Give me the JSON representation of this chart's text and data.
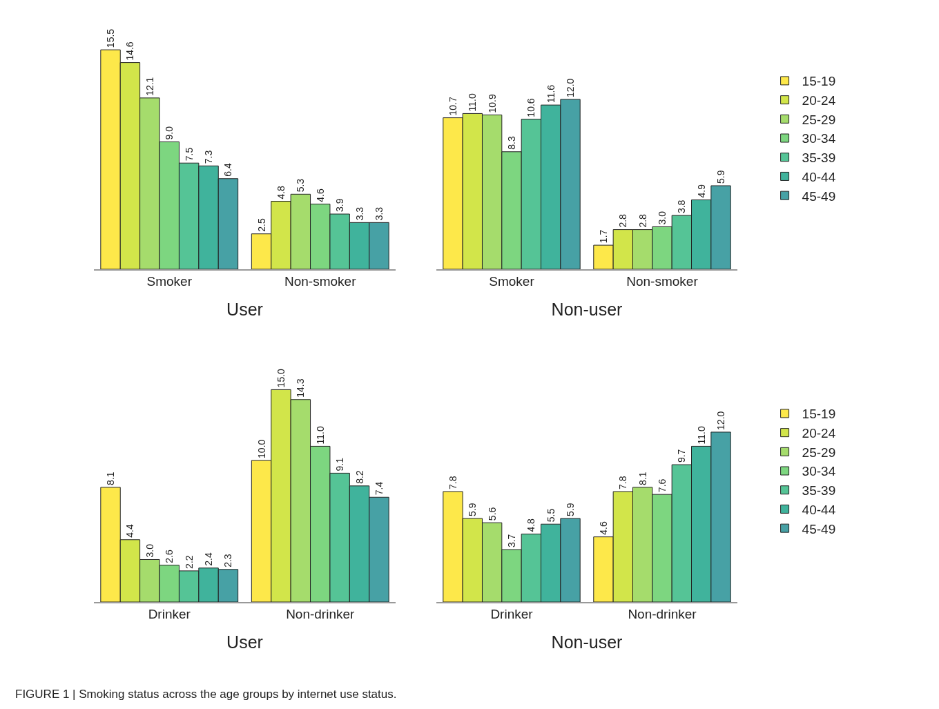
{
  "chart_data": [
    {
      "type": "bar",
      "categories": [
        "Smoker",
        "Non-smoker"
      ],
      "xlabel": "User",
      "tick_labels": "x",
      "legend": false,
      "annotations": [
        "FIGURE 1 | Smoking status across the age groups by internet use status."
      ],
      "series": [
        {
          "color": "#fde84a",
          "values": [
            15.5,
            2.5
          ],
          "value_labels": [
            "15.5",
            "2.5"
          ]
        },
        {
          "color": "#d2e54a",
          "values": [
            14.6,
            4.8
          ],
          "value_labels": [
            "14.6",
            "4.8"
          ]
        },
        {
          "color": "#a5dc6c",
          "values": [
            12.1,
            5.3
          ],
          "value_labels": [
            "12.1",
            "5.3"
          ]
        },
        {
          "color": "#7dd680",
          "values": [
            9.0,
            4.6
          ],
          "value_labels": [
            "9.0",
            "4.6"
          ]
        },
        {
          "color": "#55c496",
          "values": [
            7.5,
            3.9
          ],
          "value_labels": [
            "7.5",
            "3.9"
          ]
        },
        {
          "color": "#40b39c",
          "values": [
            7.3,
            3.3
          ],
          "value_labels": [
            "7.3",
            "3.3"
          ]
        },
        {
          "color": "#47a1a5",
          "values": [
            6.4,
            3.3
          ],
          "value_labels": [
            "6.4",
            "3.3"
          ]
        }
      ]
    },
    {
      "type": "bar",
      "categories": [
        "Smoker",
        "Non-smoker"
      ],
      "xlabel": "Non-user",
      "tick_labels": "x",
      "legend": "right",
      "series": [
        {
          "name": "15-19",
          "color": "#fde84a",
          "values": [
            10.7,
            1.7
          ],
          "value_labels": [
            "10.7",
            "1.7"
          ]
        },
        {
          "name": "20-24",
          "color": "#d2e54a",
          "values": [
            11.0,
            2.8
          ],
          "value_labels": [
            "11.0",
            "2.8"
          ]
        },
        {
          "name": "25-29",
          "color": "#a5dc6c",
          "values": [
            10.9,
            2.8
          ],
          "value_labels": [
            "10.9",
            "2.8"
          ]
        },
        {
          "name": "30-34",
          "color": "#7dd680",
          "values": [
            8.3,
            3.0
          ],
          "value_labels": [
            "8.3",
            "3.0"
          ]
        },
        {
          "name": "35-39",
          "color": "#55c496",
          "values": [
            10.6,
            3.8
          ],
          "value_labels": [
            "10.6",
            "3.8"
          ]
        },
        {
          "name": "40-44",
          "color": "#40b39c",
          "values": [
            11.6,
            4.9
          ],
          "value_labels": [
            "11.6",
            "4.9"
          ]
        },
        {
          "name": "45-49",
          "color": "#47a1a5",
          "values": [
            12.0,
            5.9
          ],
          "value_labels": [
            "12.0",
            "5.9"
          ]
        }
      ]
    },
    {
      "type": "bar",
      "categories": [
        "Drinker",
        "Non-drinker"
      ],
      "xlabel": "User",
      "tick_labels": "x",
      "legend": false,
      "series": [
        {
          "color": "#fde84a",
          "values": [
            8.1,
            10.0
          ],
          "value_labels": [
            "8.1",
            "10.0"
          ]
        },
        {
          "color": "#d2e54a",
          "values": [
            4.4,
            15.0
          ],
          "value_labels": [
            "4.4",
            "15.0"
          ]
        },
        {
          "color": "#a5dc6c",
          "values": [
            3.0,
            14.3
          ],
          "value_labels": [
            "3.0",
            "14.3"
          ]
        },
        {
          "color": "#7dd680",
          "values": [
            2.6,
            11.0
          ],
          "value_labels": [
            "2.6",
            "11.0"
          ]
        },
        {
          "color": "#55c496",
          "values": [
            2.2,
            9.1
          ],
          "value_labels": [
            "2.2",
            "9.1"
          ]
        },
        {
          "color": "#40b39c",
          "values": [
            2.4,
            8.2
          ],
          "value_labels": [
            "2.4",
            "8.2"
          ]
        },
        {
          "color": "#47a1a5",
          "values": [
            2.3,
            7.4
          ],
          "value_labels": [
            "2.3",
            "7.4"
          ]
        }
      ]
    },
    {
      "type": "bar",
      "categories": [
        "Drinker",
        "Non-drinker"
      ],
      "xlabel": "Non-user",
      "tick_labels": "x",
      "legend": "right",
      "series": [
        {
          "name": "15-19",
          "color": "#fde84a",
          "values": [
            7.8,
            4.6
          ],
          "value_labels": [
            "7.8",
            "4.6"
          ]
        },
        {
          "name": "20-24",
          "color": "#d2e54a",
          "values": [
            5.9,
            7.8
          ],
          "value_labels": [
            "5.9",
            "7.8"
          ]
        },
        {
          "name": "25-29",
          "color": "#a5dc6c",
          "values": [
            5.6,
            8.1
          ],
          "value_labels": [
            "5.6",
            "8.1"
          ]
        },
        {
          "name": "30-34",
          "color": "#7dd680",
          "values": [
            3.7,
            7.6
          ],
          "value_labels": [
            "3.7",
            "7.6"
          ]
        },
        {
          "name": "35-39",
          "color": "#55c496",
          "values": [
            4.8,
            9.7
          ],
          "value_labels": [
            "4.8",
            "9.7"
          ]
        },
        {
          "name": "40-44",
          "color": "#40b39c",
          "values": [
            5.5,
            11.0
          ],
          "value_labels": [
            "5.5",
            "11.0"
          ]
        },
        {
          "name": "45-49",
          "color": "#47a1a5",
          "values": [
            5.9,
            12.0
          ],
          "value_labels": [
            "5.9",
            "12.0"
          ]
        }
      ]
    }
  ]
}
